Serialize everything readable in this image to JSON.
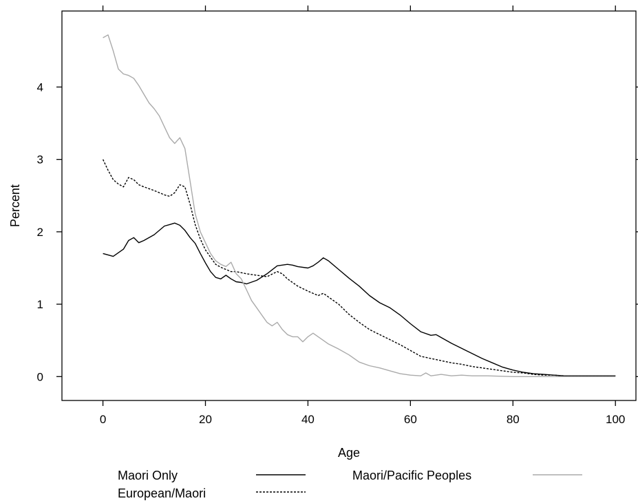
{
  "chart_data": {
    "type": "line",
    "xlabel": "Age",
    "ylabel": "Percent",
    "xlim": [
      -8,
      104
    ],
    "ylim": [
      -0.33,
      5.05
    ],
    "x_ticks": [
      0,
      20,
      40,
      60,
      80,
      100
    ],
    "y_ticks": [
      0,
      1,
      2,
      3,
      4
    ],
    "x_tick_labels": [
      "0",
      "20",
      "40",
      "60",
      "80",
      "100"
    ],
    "y_tick_labels": [
      "0",
      "1",
      "2",
      "3",
      "4"
    ],
    "grid": false,
    "legend_position": "bottom",
    "series": [
      {
        "name": "Maori Only",
        "color": "#000000",
        "line_style": "solid",
        "points": [
          [
            0,
            1.7
          ],
          [
            2,
            1.66
          ],
          [
            4,
            1.76
          ],
          [
            5,
            1.88
          ],
          [
            6,
            1.92
          ],
          [
            7,
            1.85
          ],
          [
            8,
            1.88
          ],
          [
            10,
            1.96
          ],
          [
            12,
            2.08
          ],
          [
            13,
            2.1
          ],
          [
            14,
            2.12
          ],
          [
            15,
            2.09
          ],
          [
            16,
            2.02
          ],
          [
            17,
            1.92
          ],
          [
            18,
            1.84
          ],
          [
            19,
            1.7
          ],
          [
            20,
            1.57
          ],
          [
            21,
            1.45
          ],
          [
            22,
            1.37
          ],
          [
            23,
            1.35
          ],
          [
            24,
            1.4
          ],
          [
            25,
            1.35
          ],
          [
            26,
            1.31
          ],
          [
            27,
            1.3
          ],
          [
            28,
            1.28
          ],
          [
            30,
            1.33
          ],
          [
            32,
            1.42
          ],
          [
            34,
            1.53
          ],
          [
            36,
            1.55
          ],
          [
            37,
            1.54
          ],
          [
            38,
            1.52
          ],
          [
            40,
            1.5
          ],
          [
            41,
            1.53
          ],
          [
            42,
            1.58
          ],
          [
            43,
            1.64
          ],
          [
            44,
            1.6
          ],
          [
            46,
            1.48
          ],
          [
            48,
            1.36
          ],
          [
            50,
            1.25
          ],
          [
            52,
            1.12
          ],
          [
            54,
            1.02
          ],
          [
            56,
            0.95
          ],
          [
            58,
            0.85
          ],
          [
            60,
            0.73
          ],
          [
            62,
            0.62
          ],
          [
            64,
            0.57
          ],
          [
            65,
            0.58
          ],
          [
            66,
            0.54
          ],
          [
            68,
            0.46
          ],
          [
            70,
            0.39
          ],
          [
            72,
            0.32
          ],
          [
            74,
            0.25
          ],
          [
            76,
            0.19
          ],
          [
            78,
            0.13
          ],
          [
            80,
            0.09
          ],
          [
            82,
            0.06
          ],
          [
            84,
            0.04
          ],
          [
            86,
            0.03
          ],
          [
            88,
            0.02
          ],
          [
            90,
            0.01
          ],
          [
            95,
            0.01
          ],
          [
            100,
            0.01
          ]
        ]
      },
      {
        "name": "European/Maori",
        "color": "#000000",
        "line_style": "dashed",
        "points": [
          [
            0,
            3.0
          ],
          [
            1,
            2.85
          ],
          [
            2,
            2.72
          ],
          [
            3,
            2.66
          ],
          [
            4,
            2.62
          ],
          [
            5,
            2.75
          ],
          [
            6,
            2.72
          ],
          [
            7,
            2.65
          ],
          [
            8,
            2.62
          ],
          [
            10,
            2.57
          ],
          [
            12,
            2.51
          ],
          [
            13,
            2.49
          ],
          [
            14,
            2.54
          ],
          [
            15,
            2.65
          ],
          [
            16,
            2.62
          ],
          [
            17,
            2.38
          ],
          [
            18,
            2.1
          ],
          [
            19,
            1.9
          ],
          [
            20,
            1.75
          ],
          [
            21,
            1.65
          ],
          [
            22,
            1.55
          ],
          [
            23,
            1.51
          ],
          [
            24,
            1.48
          ],
          [
            25,
            1.45
          ],
          [
            26,
            1.45
          ],
          [
            28,
            1.42
          ],
          [
            30,
            1.4
          ],
          [
            32,
            1.38
          ],
          [
            34,
            1.45
          ],
          [
            35,
            1.42
          ],
          [
            36,
            1.35
          ],
          [
            38,
            1.25
          ],
          [
            40,
            1.18
          ],
          [
            42,
            1.12
          ],
          [
            43,
            1.15
          ],
          [
            44,
            1.1
          ],
          [
            46,
            1.0
          ],
          [
            48,
            0.86
          ],
          [
            50,
            0.75
          ],
          [
            52,
            0.65
          ],
          [
            54,
            0.58
          ],
          [
            56,
            0.51
          ],
          [
            58,
            0.44
          ],
          [
            60,
            0.36
          ],
          [
            62,
            0.28
          ],
          [
            64,
            0.25
          ],
          [
            66,
            0.22
          ],
          [
            68,
            0.19
          ],
          [
            70,
            0.17
          ],
          [
            72,
            0.14
          ],
          [
            74,
            0.12
          ],
          [
            76,
            0.1
          ],
          [
            78,
            0.08
          ],
          [
            80,
            0.06
          ],
          [
            82,
            0.05
          ],
          [
            84,
            0.03
          ],
          [
            86,
            0.02
          ],
          [
            88,
            0.02
          ],
          [
            90,
            0.01
          ],
          [
            95,
            0.01
          ],
          [
            100,
            0.01
          ]
        ]
      },
      {
        "name": "Maori/Pacific Peoples",
        "color": "#aaaaaa",
        "line_style": "solid",
        "points": [
          [
            0,
            4.68
          ],
          [
            1,
            4.72
          ],
          [
            2,
            4.5
          ],
          [
            3,
            4.25
          ],
          [
            4,
            4.18
          ],
          [
            5,
            4.16
          ],
          [
            6,
            4.12
          ],
          [
            7,
            4.02
          ],
          [
            8,
            3.9
          ],
          [
            9,
            3.78
          ],
          [
            10,
            3.7
          ],
          [
            11,
            3.6
          ],
          [
            12,
            3.45
          ],
          [
            13,
            3.3
          ],
          [
            14,
            3.22
          ],
          [
            15,
            3.3
          ],
          [
            16,
            3.15
          ],
          [
            17,
            2.7
          ],
          [
            18,
            2.25
          ],
          [
            19,
            2.0
          ],
          [
            20,
            1.85
          ],
          [
            21,
            1.7
          ],
          [
            22,
            1.6
          ],
          [
            23,
            1.55
          ],
          [
            24,
            1.52
          ],
          [
            25,
            1.58
          ],
          [
            26,
            1.42
          ],
          [
            27,
            1.35
          ],
          [
            28,
            1.2
          ],
          [
            29,
            1.05
          ],
          [
            30,
            0.95
          ],
          [
            31,
            0.85
          ],
          [
            32,
            0.75
          ],
          [
            33,
            0.7
          ],
          [
            34,
            0.75
          ],
          [
            35,
            0.65
          ],
          [
            36,
            0.58
          ],
          [
            37,
            0.55
          ],
          [
            38,
            0.55
          ],
          [
            39,
            0.48
          ],
          [
            40,
            0.55
          ],
          [
            41,
            0.6
          ],
          [
            42,
            0.55
          ],
          [
            43,
            0.5
          ],
          [
            44,
            0.45
          ],
          [
            46,
            0.38
          ],
          [
            48,
            0.3
          ],
          [
            50,
            0.2
          ],
          [
            52,
            0.15
          ],
          [
            54,
            0.12
          ],
          [
            56,
            0.08
          ],
          [
            58,
            0.04
          ],
          [
            60,
            0.02
          ],
          [
            62,
            0.01
          ],
          [
            63,
            0.05
          ],
          [
            64,
            0.01
          ],
          [
            66,
            0.03
          ],
          [
            68,
            0.01
          ],
          [
            70,
            0.02
          ],
          [
            72,
            0.01
          ],
          [
            75,
            0.01
          ],
          [
            80,
            0.0
          ],
          [
            90,
            0.0
          ],
          [
            100,
            0.0
          ]
        ]
      }
    ]
  }
}
